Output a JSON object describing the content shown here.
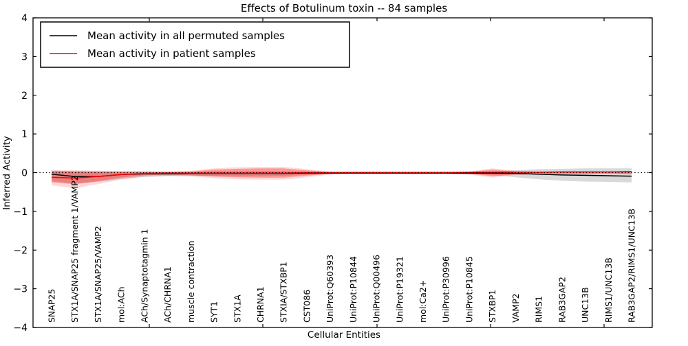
{
  "title": "Effects of Botulinum toxin -- 84 samples",
  "legend": {
    "entries": [
      {
        "label": "Mean activity in all permuted samples",
        "color": "#000000"
      },
      {
        "label": "Mean activity in patient samples",
        "color": "#ff0000"
      }
    ],
    "position": "upper left"
  },
  "chart_data": {
    "type": "line",
    "title": "Effects of Botulinum toxin -- 84 samples",
    "xlabel": "Cellular Entities",
    "ylabel": "Inferred Activity",
    "ylim": [
      -4,
      4
    ],
    "yticks": [
      4,
      3,
      2,
      1,
      0,
      -1,
      -2,
      -3,
      -4
    ],
    "ytick_labels": [
      "4",
      "3",
      "2",
      "1",
      "0",
      "−1",
      "−2",
      "−3",
      "−4"
    ],
    "grid": false,
    "zero_line": {
      "style": "dotted",
      "color": "#000000",
      "y": 0
    },
    "legend_position": "upper left",
    "categories": [
      "SNAP25",
      "STX1A/SNAP25 fragment 1/VAMP2",
      "STX1A/SNAP25/VAMP2",
      "mol:ACh",
      "ACh/Synaptotagmin 1",
      "ACh/CHRNA1",
      "muscle contraction",
      "SYT1",
      "STX1A",
      "CHRNA1",
      "STXIA/STXBP1",
      "CST086",
      "UniProt:Q60393",
      "UniProt:P10844",
      "UniProt:Q00496",
      "UniProt:P19321",
      "mol:Ca2+",
      "UniProt:P30996",
      "UniProt:P10845",
      "STXBP1",
      "VAMP2",
      "RIMS1",
      "RAB3GAP2",
      "UNC13B",
      "RIMS1/UNC13B",
      "RAB3GAP2/RIMS1/UNC13B"
    ],
    "series": [
      {
        "name": "Mean activity in all permuted samples",
        "color": "#000000",
        "values": [
          -0.04,
          -0.1,
          -0.1,
          -0.05,
          -0.03,
          -0.03,
          -0.02,
          -0.02,
          -0.02,
          -0.02,
          -0.02,
          -0.01,
          -0.01,
          -0.01,
          -0.01,
          -0.01,
          -0.01,
          -0.01,
          -0.01,
          -0.01,
          -0.02,
          -0.04,
          -0.06,
          -0.07,
          -0.08,
          -0.09
        ]
      },
      {
        "name": "Mean activity in patient samples",
        "color": "#ff0000",
        "values": [
          -0.12,
          -0.14,
          -0.1,
          -0.05,
          -0.02,
          -0.01,
          -0.01,
          -0.01,
          -0.01,
          -0.01,
          -0.01,
          0,
          0,
          0,
          0,
          0,
          0,
          0,
          0.01,
          0.01,
          0.01,
          0.01,
          0.02,
          0.02,
          0.02,
          0.03
        ]
      }
    ],
    "bands": [
      {
        "name": "permuted-samples-range",
        "color": "rgba(0,0,0,0.15)",
        "upper": [
          0.05,
          0.04,
          0.03,
          0.03,
          0.03,
          0.02,
          0.02,
          0.04,
          0.04,
          0.04,
          0.04,
          0.03,
          0.02,
          0.02,
          0.02,
          0.02,
          0.02,
          0.02,
          0.02,
          0.03,
          0.06,
          0.09,
          0.1,
          0.11,
          0.11,
          0.11
        ],
        "lower": [
          -0.22,
          -0.28,
          -0.24,
          -0.16,
          -0.11,
          -0.09,
          -0.08,
          -0.09,
          -0.09,
          -0.09,
          -0.08,
          -0.06,
          -0.03,
          -0.03,
          -0.03,
          -0.03,
          -0.03,
          -0.03,
          -0.04,
          -0.06,
          -0.12,
          -0.17,
          -0.21,
          -0.23,
          -0.24,
          -0.25
        ]
      },
      {
        "name": "patient-samples-range-outer",
        "color": "rgba(255,0,0,0.15)",
        "upper": [
          0.07,
          0.06,
          0.05,
          0.04,
          0.03,
          0.03,
          0.05,
          0.11,
          0.14,
          0.15,
          0.15,
          0.09,
          0.03,
          0.03,
          0.03,
          0.03,
          0.03,
          0.03,
          0.03,
          0.11,
          0.05,
          0.03,
          0.03,
          0.03,
          0.03,
          0.04
        ],
        "lower": [
          -0.33,
          -0.4,
          -0.3,
          -0.18,
          -0.1,
          -0.08,
          -0.1,
          -0.14,
          -0.17,
          -0.18,
          -0.18,
          -0.12,
          -0.05,
          -0.03,
          -0.03,
          -0.03,
          -0.03,
          -0.03,
          -0.05,
          -0.13,
          -0.06,
          -0.03,
          -0.03,
          -0.03,
          -0.03,
          -0.05
        ]
      },
      {
        "name": "patient-samples-range-inner",
        "color": "rgba(255,0,0,0.30)",
        "upper": [
          0.04,
          0.03,
          0.03,
          0.02,
          0.02,
          0.02,
          0.03,
          0.08,
          0.1,
          0.11,
          0.11,
          0.06,
          0.02,
          0.02,
          0.02,
          0.02,
          0.02,
          0.02,
          0.02,
          0.08,
          0.03,
          0.02,
          0.02,
          0.02,
          0.02,
          0.03
        ],
        "lower": [
          -0.25,
          -0.3,
          -0.22,
          -0.13,
          -0.07,
          -0.05,
          -0.07,
          -0.1,
          -0.12,
          -0.13,
          -0.13,
          -0.08,
          -0.03,
          -0.02,
          -0.02,
          -0.02,
          -0.02,
          -0.02,
          -0.03,
          -0.09,
          -0.04,
          -0.02,
          -0.02,
          -0.02,
          -0.02,
          -0.03
        ]
      }
    ]
  }
}
